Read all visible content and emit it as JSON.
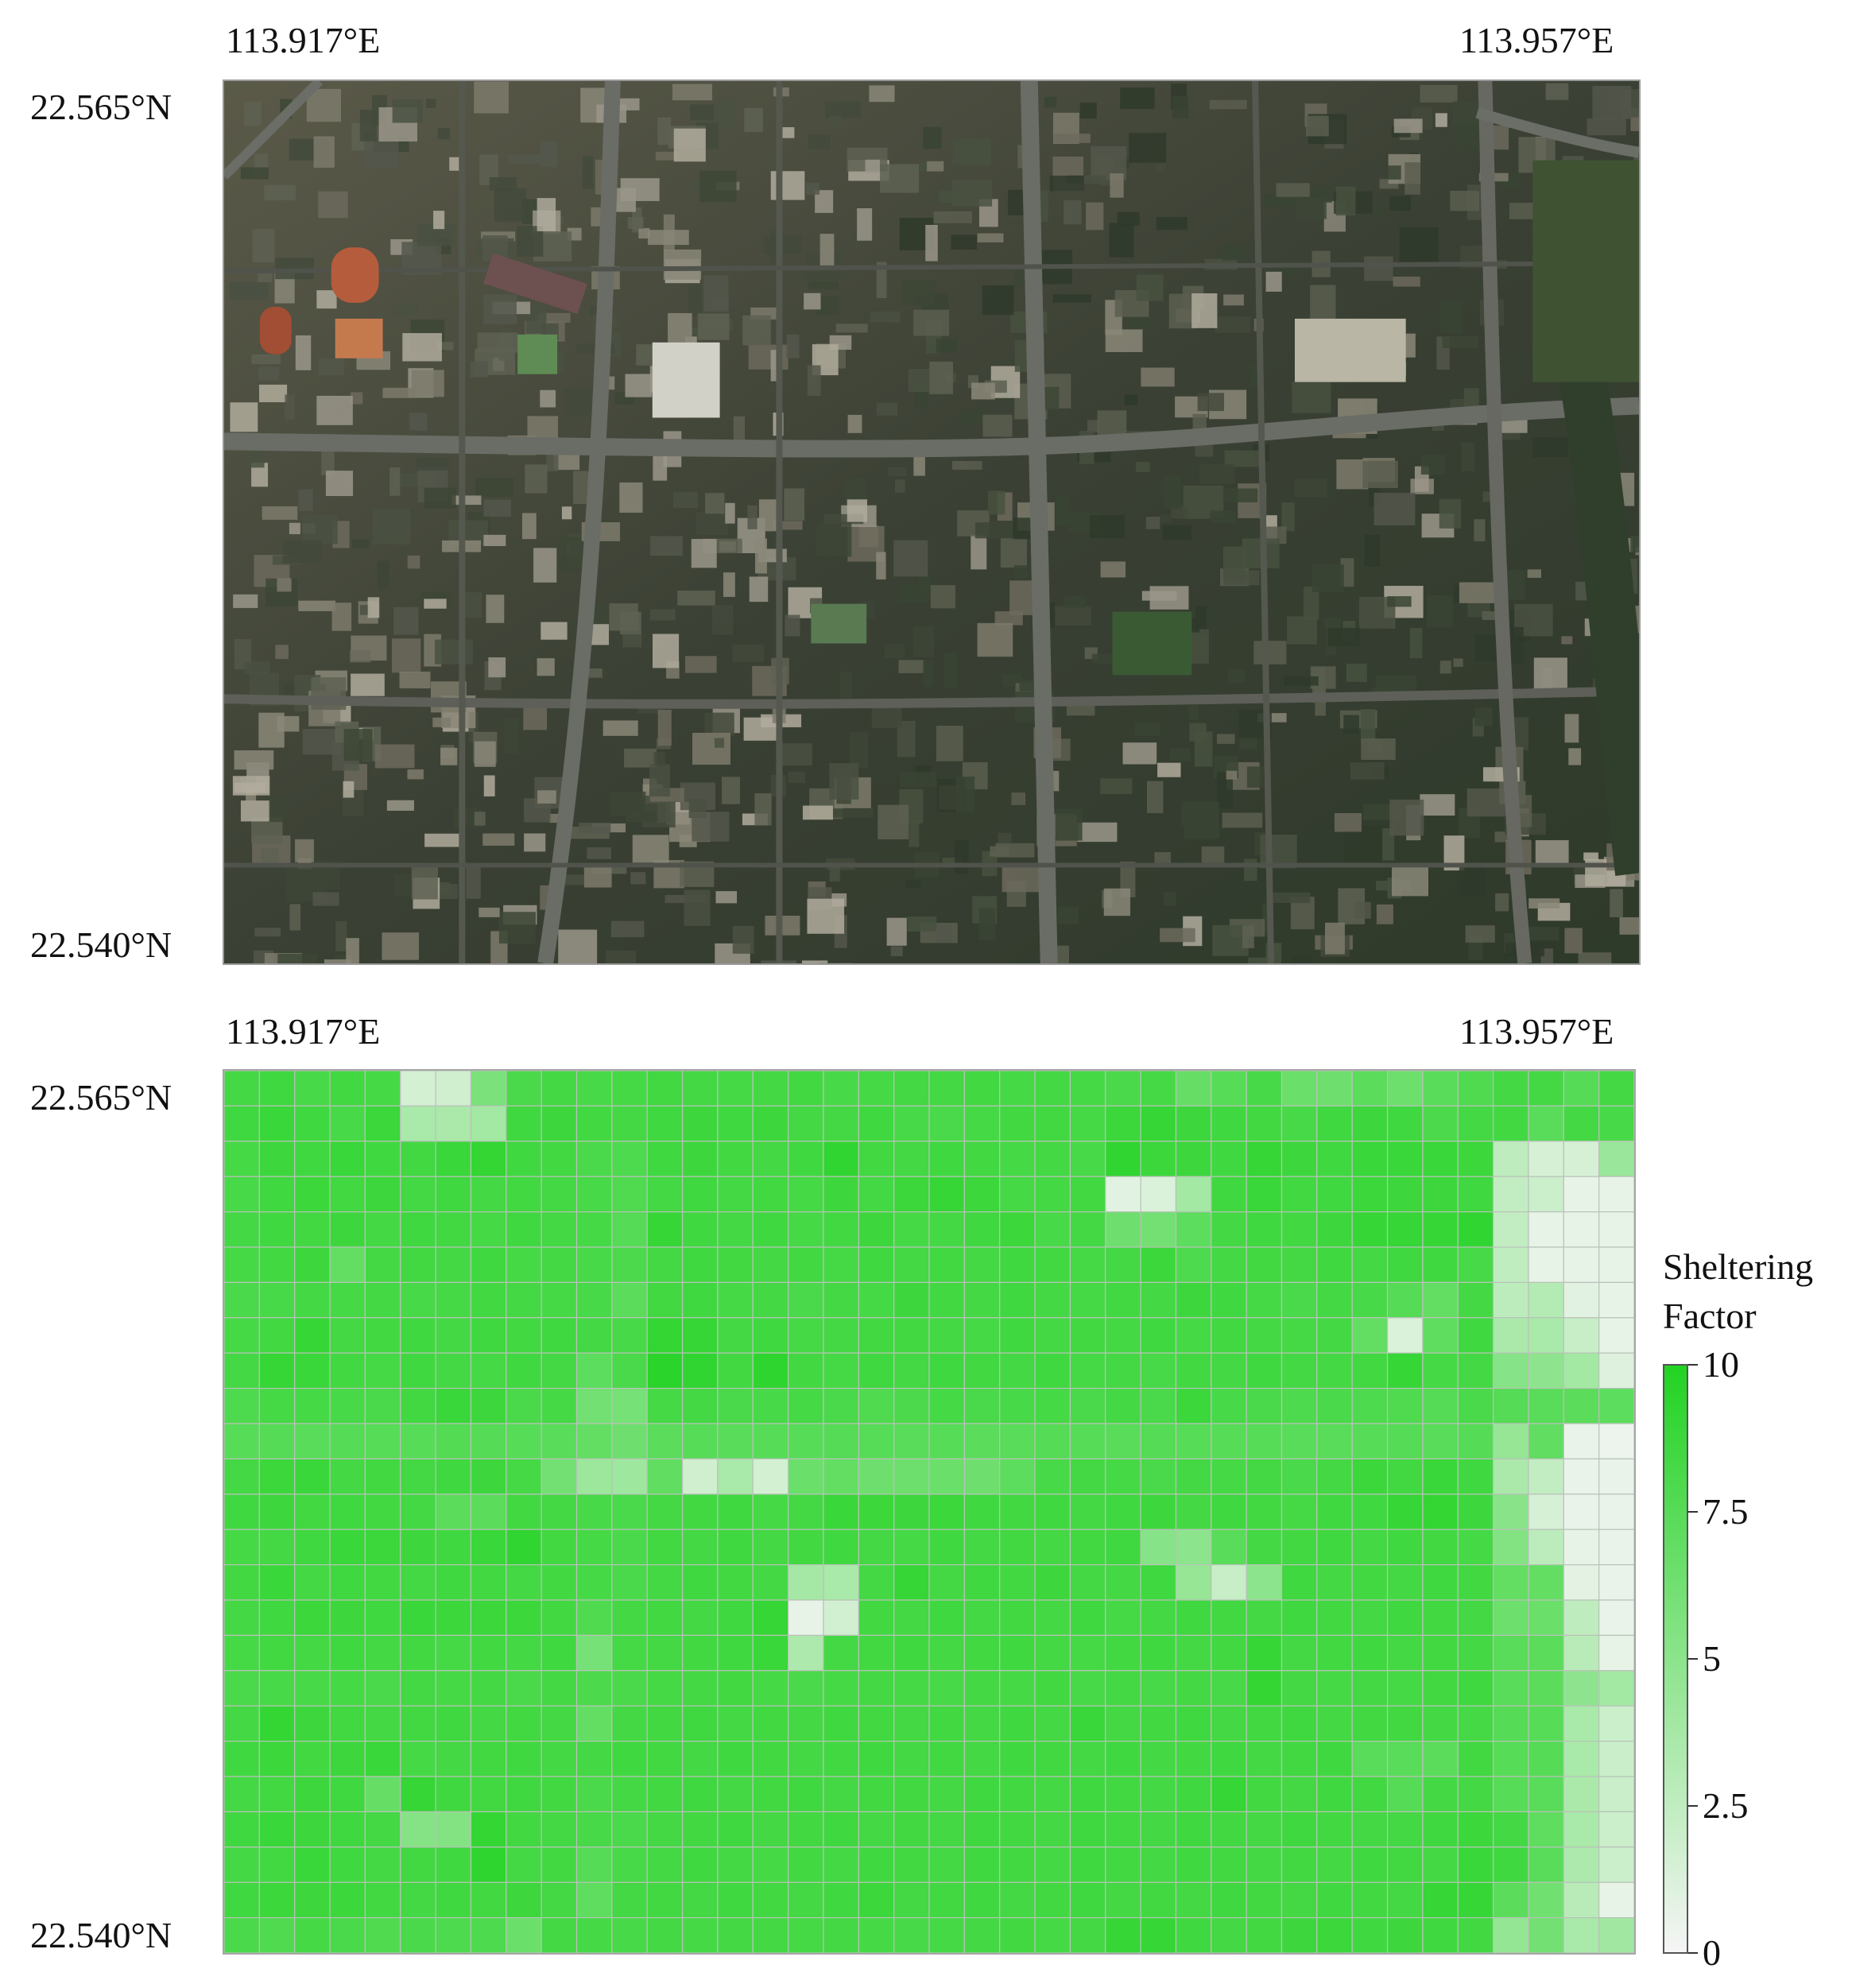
{
  "satellite_map": {
    "lon_left": "113.917°E",
    "lon_right": "113.957°E",
    "lat_top": "22.565°N",
    "lat_bottom": "22.540°N"
  },
  "grid_map": {
    "lon_left": "113.917°E",
    "lon_right": "113.957°E",
    "lat_top": "22.565°N",
    "lat_bottom": "22.540°N"
  },
  "colorbar": {
    "title_line1": "Sheltering",
    "title_line2": "Factor",
    "ticks": [
      "10",
      "7.5",
      "5",
      "2.5",
      "0"
    ],
    "color_min": "#f5f5f5",
    "color_max": "#22d322"
  },
  "chart_data": {
    "type": "heatmap",
    "title": "",
    "colorbar_label": "Sheltering Factor",
    "zlim": [
      0,
      10
    ],
    "x_range": [
      "113.917°E",
      "113.957°E"
    ],
    "y_range": [
      "22.565°N",
      "22.540°N"
    ],
    "rows": 25,
    "cols": 40,
    "values": [
      [
        8.4,
        8.6,
        8.2,
        8.5,
        8.3,
        1.6,
        1.8,
        5.8,
        8.1,
        8.4,
        8.2,
        8.3,
        8.5,
        8.4,
        8.3,
        8.4,
        8.5,
        8.2,
        8.3,
        8.4,
        8.4,
        8.5,
        8.3,
        8.4,
        8.3,
        8.1,
        8.3,
        6.8,
        7.5,
        8.2,
        6.6,
        6.4,
        7.3,
        6.5,
        7.4,
        7.8,
        8.4,
        8.4,
        7.6,
        8.4
      ],
      [
        8.6,
        8.9,
        8.6,
        8.2,
        8.8,
        3.6,
        3.5,
        3.9,
        8.6,
        8.7,
        8.5,
        8.4,
        8.6,
        8.7,
        8.6,
        8.7,
        8.4,
        8.4,
        8.6,
        8.2,
        8.1,
        8.3,
        8.5,
        8.5,
        8.3,
        8.8,
        9.1,
        8.7,
        8.6,
        8.5,
        8.2,
        8.6,
        8.7,
        8.6,
        8.0,
        8.4,
        8.5,
        7.4,
        8.4,
        8.2
      ],
      [
        8.3,
        8.7,
        8.6,
        8.9,
        8.6,
        8.5,
        8.9,
        9.2,
        8.6,
        8.5,
        8.1,
        7.9,
        8.6,
        8.7,
        8.5,
        8.4,
        8.6,
        9.3,
        8.5,
        8.4,
        8.6,
        8.5,
        8.3,
        8.4,
        8.2,
        9.3,
        8.8,
        8.7,
        8.6,
        9.1,
        8.7,
        8.6,
        8.9,
        8.9,
        8.9,
        8.8,
        2.6,
        1.5,
        1.5,
        4.3
      ],
      [
        8.2,
        8.6,
        8.8,
        8.5,
        8.7,
        8.4,
        8.6,
        8.4,
        8.5,
        8.4,
        8.2,
        7.8,
        8.4,
        8.6,
        8.4,
        8.5,
        8.3,
        8.7,
        8.4,
        8.8,
        9.0,
        8.8,
        8.3,
        8.4,
        8.5,
        0.9,
        1.3,
        3.9,
        8.6,
        8.9,
        8.5,
        8.6,
        8.8,
        8.7,
        8.7,
        8.6,
        2.4,
        2.0,
        0.6,
        0.6
      ],
      [
        8.4,
        8.6,
        8.5,
        8.7,
        8.4,
        8.6,
        8.5,
        8.3,
        8.6,
        8.4,
        8.3,
        7.6,
        9.0,
        8.6,
        8.4,
        8.6,
        8.3,
        8.5,
        8.7,
        8.3,
        8.4,
        8.6,
        8.8,
        8.2,
        8.4,
        6.4,
        6.1,
        7.2,
        8.4,
        8.6,
        8.5,
        8.7,
        9.1,
        9.1,
        9.0,
        9.3,
        2.4,
        0.7,
        0.6,
        0.7
      ],
      [
        8.3,
        8.5,
        8.7,
        6.9,
        8.4,
        8.5,
        8.4,
        8.6,
        8.3,
        8.4,
        8.2,
        8.0,
        8.4,
        8.6,
        8.5,
        8.4,
        8.5,
        8.3,
        8.6,
        8.4,
        8.5,
        8.4,
        8.6,
        8.5,
        8.3,
        8.4,
        8.8,
        7.9,
        8.4,
        8.5,
        8.4,
        8.6,
        8.4,
        8.6,
        8.6,
        8.2,
        2.5,
        0.7,
        0.6,
        0.7
      ],
      [
        8.1,
        8.2,
        8.4,
        8.3,
        8.4,
        8.2,
        8.3,
        8.5,
        8.4,
        8.3,
        8.2,
        7.3,
        8.5,
        8.6,
        8.3,
        8.4,
        8.1,
        8.4,
        8.3,
        8.7,
        8.5,
        8.4,
        8.6,
        8.4,
        8.3,
        8.5,
        8.4,
        8.7,
        8.6,
        8.3,
        8.1,
        8.4,
        8.2,
        7.6,
        6.9,
        8.4,
        2.7,
        3.1,
        0.9,
        0.7
      ],
      [
        8.3,
        8.5,
        9.1,
        8.4,
        8.5,
        8.6,
        8.4,
        8.6,
        8.5,
        8.6,
        8.4,
        8.2,
        9.2,
        9.1,
        8.4,
        8.6,
        8.3,
        8.4,
        8.5,
        8.5,
        8.4,
        8.3,
        8.6,
        8.4,
        8.5,
        8.4,
        8.6,
        8.3,
        8.5,
        8.4,
        8.3,
        8.4,
        6.9,
        1.3,
        7.1,
        8.6,
        3.5,
        3.6,
        2.2,
        0.7
      ],
      [
        8.4,
        9.1,
        8.9,
        8.5,
        8.3,
        8.6,
        8.4,
        8.3,
        8.6,
        8.4,
        7.2,
        8.1,
        9.6,
        9.3,
        8.5,
        9.4,
        8.5,
        8.3,
        8.6,
        8.4,
        8.6,
        8.5,
        8.4,
        8.6,
        8.3,
        8.4,
        8.2,
        8.5,
        8.4,
        8.6,
        8.4,
        8.4,
        8.5,
        9.0,
        8.3,
        8.4,
        5.2,
        4.9,
        3.9,
        1.1
      ],
      [
        7.9,
        8.3,
        8.3,
        8.2,
        8.1,
        8.5,
        8.9,
        8.7,
        8.1,
        8.3,
        6.2,
        6.0,
        8.3,
        8.4,
        8.1,
        8.2,
        8.3,
        8.1,
        7.8,
        8.0,
        8.3,
        8.1,
        8.2,
        8.3,
        8.1,
        8.4,
        8.1,
        8.8,
        8.2,
        8.1,
        7.9,
        8.1,
        7.9,
        7.8,
        7.6,
        8.1,
        7.6,
        7.4,
        7.3,
        7.2
      ],
      [
        7.5,
        7.6,
        7.4,
        7.6,
        7.5,
        7.5,
        7.7,
        7.6,
        7.5,
        7.4,
        6.9,
        6.4,
        7.3,
        7.5,
        7.4,
        7.5,
        7.5,
        7.6,
        7.5,
        7.4,
        7.5,
        7.3,
        7.4,
        7.6,
        7.5,
        7.4,
        7.6,
        7.5,
        7.5,
        7.5,
        7.4,
        7.4,
        7.5,
        7.6,
        7.4,
        7.6,
        4.5,
        7.0,
        0.5,
        0.4
      ],
      [
        8.4,
        8.8,
        8.9,
        8.4,
        8.5,
        8.4,
        8.6,
        8.7,
        8.3,
        6.2,
        4.2,
        4.1,
        7.0,
        1.8,
        3.6,
        1.6,
        6.6,
        6.9,
        6.4,
        6.5,
        6.6,
        6.4,
        7.2,
        8.2,
        8.4,
        8.3,
        8.1,
        8.4,
        8.3,
        8.4,
        8.1,
        8.4,
        8.8,
        8.5,
        8.9,
        8.6,
        3.5,
        2.4,
        0.5,
        0.5
      ],
      [
        8.6,
        8.7,
        8.5,
        8.6,
        8.5,
        8.4,
        7.3,
        7.3,
        8.5,
        8.4,
        8.2,
        8.1,
        8.4,
        8.5,
        8.6,
        8.3,
        8.4,
        8.9,
        8.8,
        8.7,
        8.8,
        8.6,
        8.5,
        8.6,
        8.4,
        8.6,
        8.7,
        8.4,
        8.6,
        8.5,
        8.3,
        8.6,
        8.6,
        9.1,
        9.2,
        8.7,
        5.1,
        1.5,
        0.5,
        0.5
      ],
      [
        8.3,
        8.4,
        8.6,
        8.9,
        8.8,
        8.7,
        8.6,
        8.9,
        9.3,
        8.5,
        8.3,
        8.1,
        8.5,
        8.4,
        8.6,
        8.4,
        8.5,
        8.6,
        8.4,
        8.3,
        8.6,
        8.4,
        8.5,
        8.4,
        8.5,
        8.6,
        5.2,
        5.0,
        7.4,
        8.4,
        8.5,
        8.6,
        8.4,
        8.6,
        8.5,
        8.3,
        5.4,
        2.7,
        0.6,
        0.5
      ],
      [
        8.5,
        8.9,
        8.4,
        8.6,
        8.5,
        8.4,
        8.6,
        8.5,
        8.4,
        8.5,
        8.3,
        8.1,
        8.4,
        8.6,
        8.5,
        8.4,
        3.8,
        3.6,
        8.4,
        9.1,
        8.4,
        8.6,
        8.5,
        8.7,
        8.4,
        8.4,
        8.6,
        4.5,
        2.2,
        5.0,
        8.6,
        8.4,
        8.5,
        8.4,
        8.6,
        8.5,
        6.9,
        6.9,
        0.8,
        0.5
      ],
      [
        8.4,
        8.6,
        8.8,
        8.7,
        8.6,
        8.9,
        8.8,
        8.8,
        8.8,
        8.5,
        7.8,
        8.4,
        8.5,
        8.4,
        8.6,
        9.1,
        0.6,
        1.7,
        8.5,
        8.4,
        8.6,
        8.4,
        8.5,
        8.4,
        8.6,
        8.3,
        8.4,
        8.6,
        8.5,
        8.4,
        8.6,
        8.5,
        8.4,
        8.6,
        8.5,
        8.4,
        6.5,
        6.6,
        2.6,
        0.5
      ],
      [
        8.3,
        8.5,
        8.4,
        8.6,
        8.4,
        8.5,
        8.3,
        8.5,
        8.4,
        8.6,
        6.0,
        8.3,
        8.4,
        8.5,
        8.6,
        8.9,
        3.4,
        8.4,
        8.5,
        8.6,
        8.4,
        8.5,
        8.6,
        8.4,
        8.3,
        8.5,
        8.6,
        8.4,
        8.5,
        9.1,
        8.4,
        8.5,
        8.6,
        8.4,
        8.5,
        8.4,
        7.4,
        7.3,
        2.9,
        0.6
      ],
      [
        8.1,
        8.2,
        8.2,
        8.3,
        8.1,
        8.4,
        8.3,
        8.4,
        8.1,
        8.4,
        8.0,
        8.1,
        8.3,
        8.4,
        8.5,
        8.3,
        8.1,
        8.3,
        8.4,
        8.3,
        8.2,
        8.4,
        8.3,
        8.5,
        8.2,
        8.4,
        8.2,
        8.4,
        8.2,
        9.2,
        8.4,
        8.3,
        8.4,
        8.3,
        8.5,
        8.6,
        7.4,
        7.3,
        4.9,
        3.9
      ],
      [
        8.4,
        9.2,
        8.7,
        8.5,
        8.4,
        8.5,
        8.6,
        8.4,
        8.5,
        8.4,
        6.9,
        8.4,
        8.5,
        8.6,
        8.4,
        8.5,
        8.4,
        8.6,
        8.5,
        8.4,
        8.5,
        8.4,
        8.6,
        8.4,
        8.9,
        8.4,
        8.5,
        8.6,
        8.4,
        8.5,
        8.6,
        8.4,
        8.5,
        8.5,
        8.4,
        8.3,
        7.6,
        7.5,
        3.6,
        2.0
      ],
      [
        8.6,
        8.8,
        8.5,
        8.7,
        8.9,
        8.3,
        8.4,
        8.5,
        8.6,
        8.4,
        8.4,
        8.6,
        8.5,
        8.4,
        8.6,
        8.5,
        8.4,
        8.5,
        8.6,
        8.4,
        8.5,
        8.4,
        8.6,
        8.5,
        8.4,
        8.6,
        8.4,
        8.5,
        8.6,
        8.4,
        8.5,
        8.6,
        7.4,
        7.4,
        7.3,
        8.5,
        7.5,
        7.6,
        3.6,
        2.1
      ],
      [
        8.4,
        8.5,
        8.7,
        8.6,
        6.8,
        9.1,
        8.6,
        8.5,
        8.6,
        8.5,
        8.1,
        8.4,
        8.5,
        8.6,
        8.4,
        8.5,
        8.6,
        8.4,
        8.5,
        8.5,
        8.4,
        8.6,
        8.5,
        8.4,
        8.6,
        8.5,
        8.4,
        8.6,
        9.1,
        8.5,
        8.4,
        8.6,
        8.5,
        7.6,
        8.4,
        8.4,
        7.5,
        7.4,
        3.5,
        2.1
      ],
      [
        8.6,
        8.9,
        8.7,
        8.6,
        8.4,
        5.3,
        5.4,
        9.2,
        8.5,
        8.4,
        8.2,
        8.1,
        8.4,
        8.5,
        8.6,
        8.4,
        8.5,
        8.6,
        8.4,
        8.5,
        8.4,
        8.6,
        8.5,
        8.4,
        8.6,
        8.5,
        8.4,
        8.6,
        8.5,
        8.4,
        8.6,
        8.5,
        8.4,
        8.4,
        8.6,
        8.8,
        8.4,
        7.1,
        3.6,
        2.0
      ],
      [
        8.4,
        8.5,
        8.9,
        8.6,
        8.4,
        8.5,
        8.6,
        9.4,
        8.4,
        8.5,
        7.6,
        8.2,
        8.4,
        8.6,
        8.4,
        8.3,
        8.5,
        8.4,
        8.6,
        8.5,
        8.4,
        8.6,
        8.5,
        8.4,
        8.6,
        8.5,
        8.4,
        8.6,
        8.5,
        8.4,
        8.5,
        8.4,
        8.6,
        8.5,
        8.4,
        8.9,
        8.6,
        7.4,
        3.4,
        2.0
      ],
      [
        8.6,
        8.8,
        8.7,
        8.8,
        8.5,
        8.4,
        8.6,
        8.5,
        8.7,
        8.4,
        7.1,
        8.4,
        8.5,
        8.4,
        8.6,
        8.5,
        8.4,
        8.6,
        8.8,
        8.4,
        8.5,
        8.6,
        8.4,
        8.5,
        8.6,
        8.4,
        8.5,
        8.4,
        8.6,
        8.5,
        8.4,
        8.6,
        8.5,
        8.4,
        9.1,
        9.0,
        7.3,
        6.3,
        2.9,
        0.7
      ],
      [
        8.1,
        7.8,
        8.3,
        8.1,
        7.8,
        8.1,
        7.9,
        7.9,
        6.6,
        8.4,
        8.3,
        8.2,
        8.4,
        8.3,
        8.4,
        8.4,
        8.3,
        8.4,
        8.3,
        8.2,
        8.3,
        8.4,
        8.5,
        8.3,
        8.4,
        9.0,
        9.1,
        8.6,
        8.4,
        8.5,
        8.7,
        8.8,
        8.6,
        8.7,
        8.6,
        8.5,
        4.6,
        6.2,
        3.6,
        4.0
      ]
    ]
  }
}
